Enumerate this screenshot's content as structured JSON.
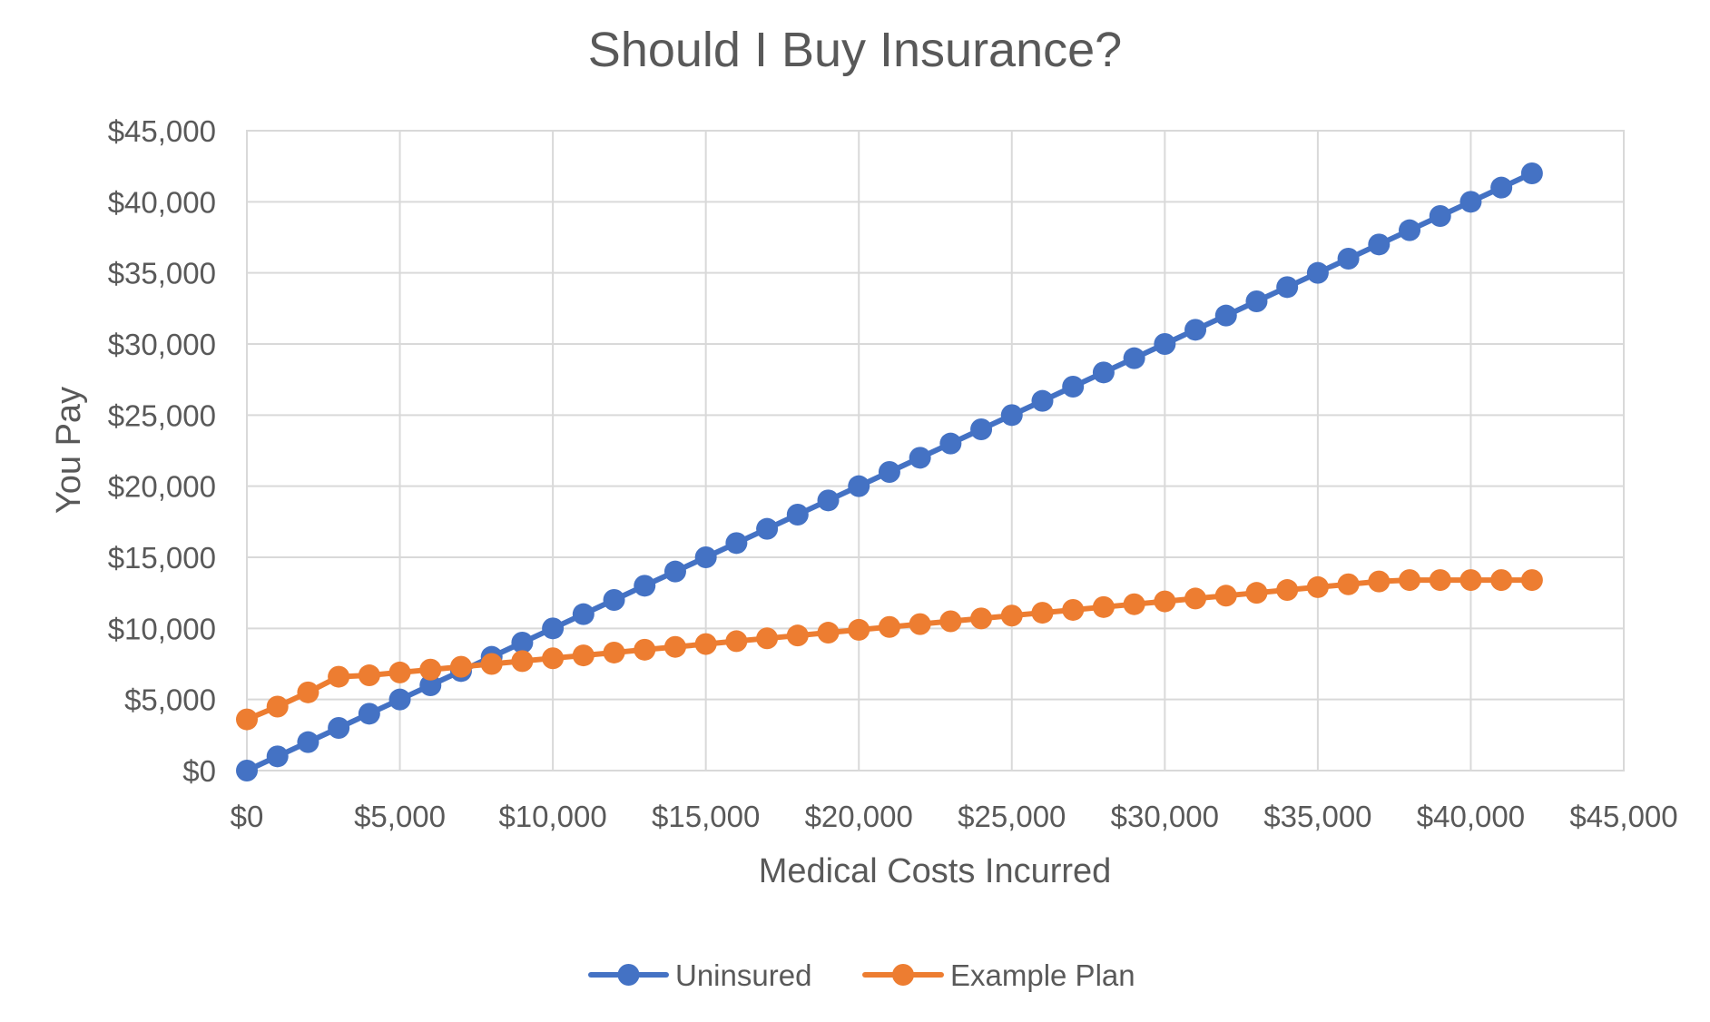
{
  "chart_data": {
    "type": "line",
    "title": "Should I Buy Insurance?",
    "xlabel": "Medical Costs Incurred",
    "ylabel": "You Pay",
    "xlim": [
      0,
      45000
    ],
    "ylim": [
      0,
      45000
    ],
    "x_ticks": [
      0,
      5000,
      10000,
      15000,
      20000,
      25000,
      30000,
      35000,
      40000,
      45000
    ],
    "y_ticks": [
      0,
      5000,
      10000,
      15000,
      20000,
      25000,
      30000,
      35000,
      40000,
      45000
    ],
    "tick_prefix": "$",
    "grid": true,
    "legend_position": "bottom",
    "x": [
      0,
      1000,
      2000,
      3000,
      4000,
      5000,
      6000,
      7000,
      8000,
      9000,
      10000,
      11000,
      12000,
      13000,
      14000,
      15000,
      16000,
      17000,
      18000,
      19000,
      20000,
      21000,
      22000,
      23000,
      24000,
      25000,
      26000,
      27000,
      28000,
      29000,
      30000,
      31000,
      32000,
      33000,
      34000,
      35000,
      36000,
      37000,
      38000,
      39000,
      40000,
      41000,
      42000
    ],
    "series": [
      {
        "name": "Uninsured",
        "color": "#4472c4",
        "values": [
          0,
          1000,
          2000,
          3000,
          4000,
          5000,
          6000,
          7000,
          8000,
          9000,
          10000,
          11000,
          12000,
          13000,
          14000,
          15000,
          16000,
          17000,
          18000,
          19000,
          20000,
          21000,
          22000,
          23000,
          24000,
          25000,
          26000,
          27000,
          28000,
          29000,
          30000,
          31000,
          32000,
          33000,
          34000,
          35000,
          36000,
          37000,
          38000,
          39000,
          40000,
          41000,
          42000
        ]
      },
      {
        "name": "Example Plan",
        "color": "#ed7d31",
        "values": [
          3600,
          4500,
          5500,
          6600,
          6700,
          6900,
          7100,
          7300,
          7500,
          7700,
          7900,
          8100,
          8300,
          8500,
          8700,
          8900,
          9100,
          9300,
          9500,
          9700,
          9900,
          10100,
          10300,
          10500,
          10700,
          10900,
          11100,
          11300,
          11500,
          11700,
          11900,
          12100,
          12300,
          12500,
          12700,
          12900,
          13100,
          13300,
          13400,
          13400,
          13400,
          13400,
          13400
        ]
      }
    ]
  }
}
